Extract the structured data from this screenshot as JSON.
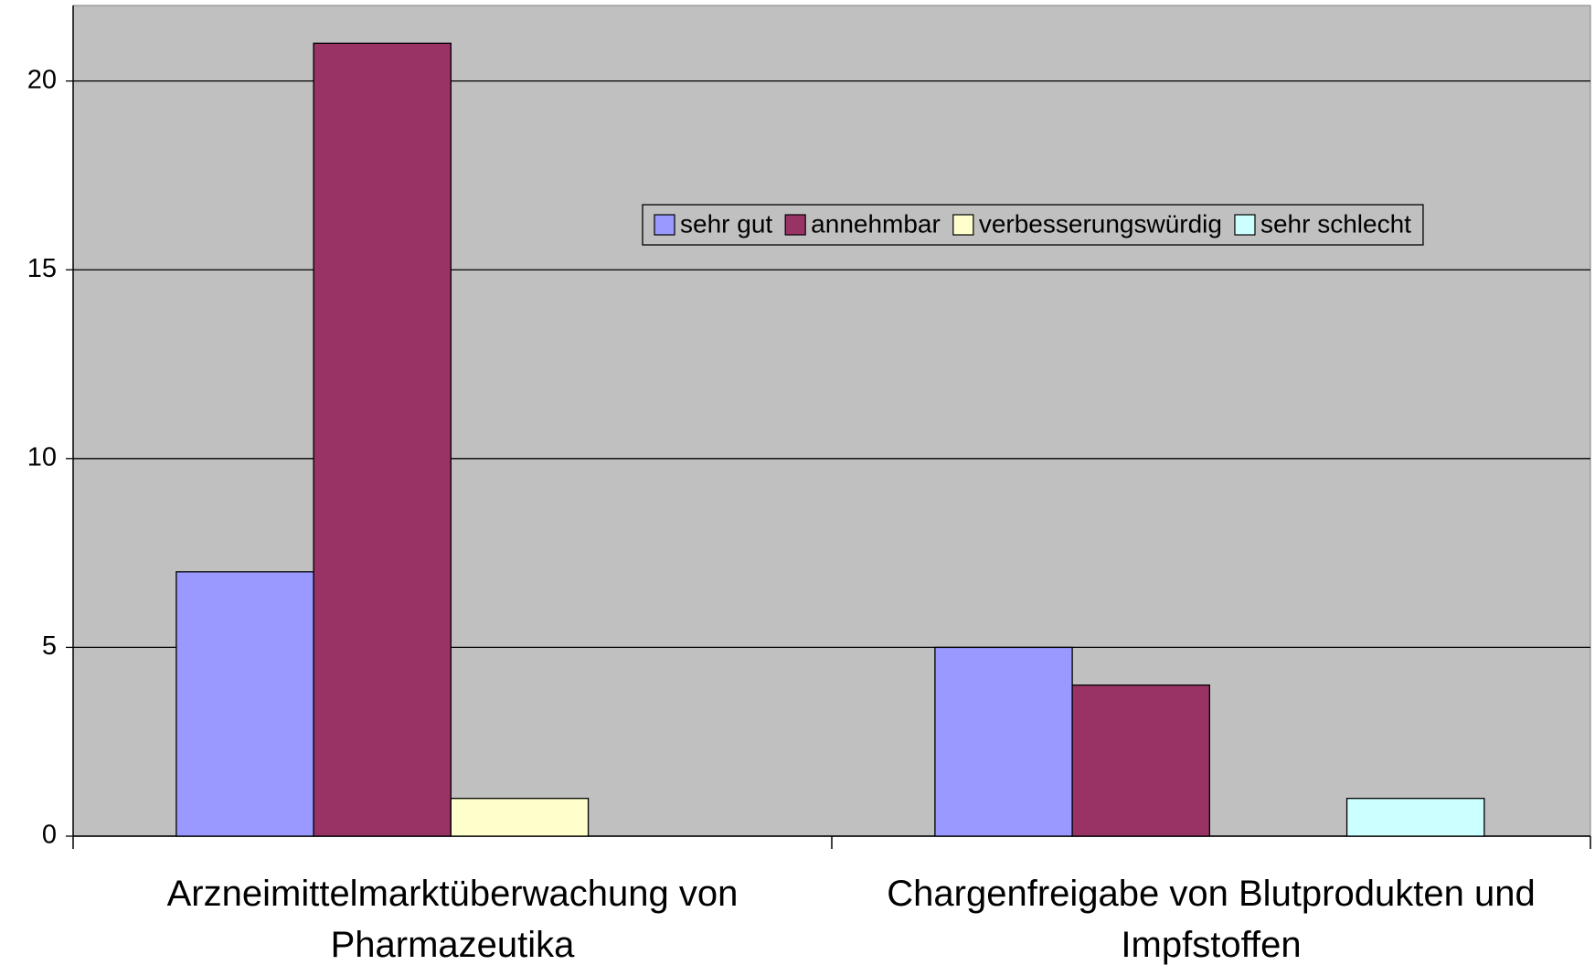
{
  "chart_data": {
    "type": "bar",
    "categories": [
      "Arzneimittelmarktüberwachung von Pharmazeutika",
      "Chargenfreigabe von Blutprodukten und Impfstoffen"
    ],
    "series": [
      {
        "name": "sehr gut",
        "color": "#9999ff",
        "values": [
          7,
          5
        ]
      },
      {
        "name": "annehmbar",
        "color": "#993366",
        "values": [
          21,
          4
        ]
      },
      {
        "name": "verbesserungswürdig",
        "color": "#ffffcc",
        "values": [
          1,
          0
        ]
      },
      {
        "name": "sehr schlecht",
        "color": "#ccffff",
        "values": [
          0,
          1
        ]
      }
    ],
    "ylim": [
      0,
      22
    ],
    "yticks": [
      0,
      5,
      10,
      15,
      20
    ],
    "grid": true,
    "legend": "top-right"
  }
}
